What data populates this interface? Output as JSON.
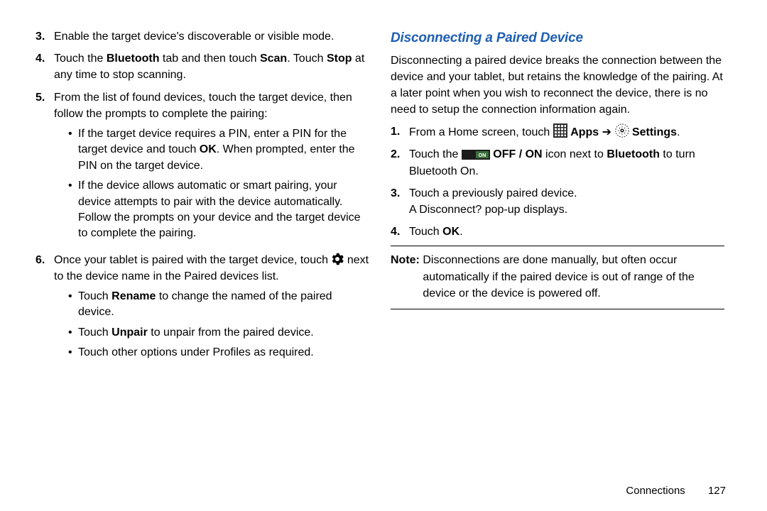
{
  "left": {
    "items": [
      {
        "num": "3.",
        "text_html": "Enable the target device's discoverable or visible mode."
      },
      {
        "num": "4.",
        "text_html": "Touch the <b>Bluetooth</b> tab and then touch <b>Scan</b>. Touch <b>Stop</b> at any time to stop scanning."
      },
      {
        "num": "5.",
        "text_html": "From the list of found devices, touch the target device, then follow the prompts to complete the pairing:",
        "subs": [
          "If the target device requires a PIN, enter a PIN for the target device and touch <b>OK</b>. When prompted, enter the PIN on the target device.",
          "If the device allows automatic or smart pairing, your device attempts to pair with the device automatically. Follow the prompts on your device and the target device to complete the pairing."
        ]
      },
      {
        "num": "6.",
        "text_html": "Once your tablet is paired with the target device, touch {GEAR} next to the device name in the Paired devices list.",
        "subs": [
          "Touch <b>Rename</b> to change the named of the paired device.",
          "Touch <b>Unpair</b> to unpair from the paired device.",
          "Touch other options under Profiles as required."
        ]
      }
    ]
  },
  "right": {
    "heading": "Disconnecting a Paired Device",
    "paragraph": "Disconnecting a paired device breaks the connection between the device and your tablet, but retains the knowledge of the pairing. At a later point when you wish to reconnect the device, there is no need to setup the connection information again.",
    "items": [
      {
        "num": "1.",
        "text_html": "From a Home screen, touch {APPS} <b>Apps</b> ➔ {SETTINGS} <b>Settings</b>."
      },
      {
        "num": "2.",
        "text_html": "Touch the {ONSWITCH} <b>OFF / ON</b> icon next to <b>Bluetooth</b> to turn Bluetooth On."
      },
      {
        "num": "3.",
        "text_html": "Touch a previously paired device.<br>A Disconnect? pop-up displays."
      },
      {
        "num": "4.",
        "text_html": "Touch <b>OK</b>."
      }
    ],
    "note_label": "Note:",
    "note_body": "Disconnections are done manually, but often occur automatically if the paired device is out of range of the device or the device is powered off."
  },
  "footer": {
    "section": "Connections",
    "page": "127"
  },
  "icons": {
    "gear_svg": "<svg class='inline-icon' data-name='gear-icon' data-interactable='false' width='18' height='18' viewBox='0 0 24 24'><path fill='#000' d='M12 8a4 4 0 1 0 0 8 4 4 0 0 0 0-8zm9.4 4c0 .5 0 1-.1 1.4l2.1 1.6c.2.2.3.5.1.7l-2 3.5c-.1.2-.4.3-.7.2l-2.5-1a7.7 7.7 0 0 1-2.4 1.4l-.4 2.7c0 .3-.3.5-.5.5h-4c-.3 0-.5-.2-.5-.5l-.4-2.7a7.7 7.7 0 0 1-2.4-1.4l-2.5 1c-.3.1-.6 0-.7-.2l-2-3.5c-.2-.2-.1-.5.1-.7l2.1-1.6c-.1-.4-.1-.9-.1-1.4s0-1 .1-1.4L2.6 9c-.2-.2-.3-.5-.1-.7l2-3.5c.1-.2.4-.3.7-.2l2.5 1a7.7 7.7 0 0 1 2.4-1.4l.4-2.7c0-.3.2-.5.5-.5h4c.2 0 .5.2.5.5l.4 2.7c.9.3 1.7.8 2.4 1.4l2.5-1c.3-.1.6 0 .7.2l2 3.5c.2.2.1.5-.1.7l-2.1 1.6c.1.4.1.9.1 1.4z'/></svg>",
    "apps_svg": "<svg class='inline-icon' data-name='apps-icon' data-interactable='false' width='20' height='20' viewBox='0 0 20 20'><rect x='0' y='0' width='20' height='20' fill='#2a2a2a'/><g fill='#fff'><rect x='2' y='2' width='3' height='3'/><rect x='6.5' y='2' width='3' height='3'/><rect x='11' y='2' width='3' height='3'/><rect x='15.5' y='2' width='2.5' height='3'/><rect x='2' y='6.5' width='3' height='3'/><rect x='6.5' y='6.5' width='3' height='3'/><rect x='11' y='6.5' width='3' height='3'/><rect x='15.5' y='6.5' width='2.5' height='3'/><rect x='2' y='11' width='3' height='3'/><rect x='6.5' y='11' width='3' height='3'/><rect x='11' y='11' width='3' height='3'/><rect x='15.5' y='11' width='2.5' height='3'/><rect x='2' y='15.5' width='3' height='2.5'/><rect x='6.5' y='15.5' width='3' height='2.5'/><rect x='11' y='15.5' width='3' height='2.5'/><rect x='15.5' y='15.5' width='2.5' height='2.5'/></g></svg>",
    "settings_svg": "<svg class='inline-icon' data-name='settings-icon' data-interactable='false' width='20' height='20' viewBox='0 0 24 24'><circle cx='12' cy='12' r='11' fill='none' stroke='#000' stroke-width='1' stroke-dasharray='2 2'/><g fill='#000'><circle cx='12' cy='12' r='2.2' fill='none' stroke='#000' stroke-width='1.6'/><path d='M12 4.3l.9 2.2h-1.8zM12 19.7l-.9-2.2h1.8zM4.3 12l2.2-.9v1.8zM19.7 12l-2.2.9v-1.8zM6.7 6.7l2.2.9-1.3 1.3zM17.3 17.3l-2.2-.9 1.3-1.3zM6.7 17.3l.9-2.2 1.3 1.3zM17.3 6.7l-.9 2.2-1.3-1.3z'/></g></svg>",
    "on_svg": "<svg class='inline-icon' data-name='on-switch-icon' data-interactable='false' width='40' height='14' viewBox='0 0 40 14'><rect x='0' y='0' width='40' height='14' fill='#1b1b1b'/><rect x='20' y='2' width='18' height='10' fill='#3b6f3b'/><text x='29' y='10' font-size='7' fill='#fff' text-anchor='middle' font-family='Arial' font-weight='bold'>ON</text></svg>"
  }
}
